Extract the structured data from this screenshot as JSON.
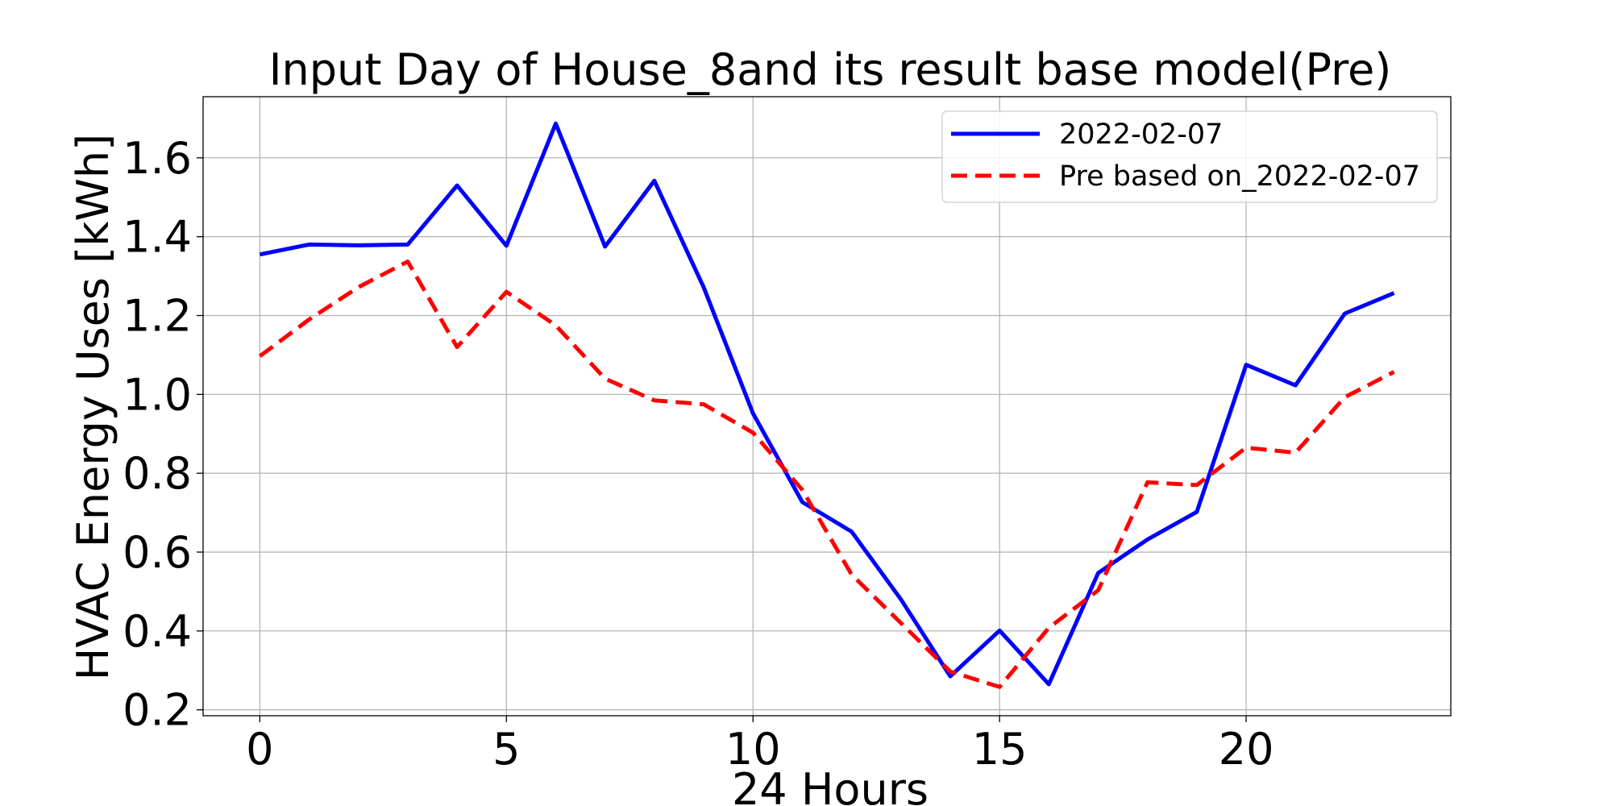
{
  "chart_data": {
    "type": "line",
    "title": "Input Day of House_8and its result base model(Pre)",
    "xlabel": "24 Hours",
    "ylabel": "HVAC Energy Uses [kWh]",
    "xlim": [
      -1.15,
      24.15
    ],
    "ylim": [
      0.185,
      1.755
    ],
    "xticks": [
      0,
      5,
      10,
      15,
      20
    ],
    "yticks": [
      0.2,
      0.4,
      0.6,
      0.8,
      1.0,
      1.2,
      1.4,
      1.6
    ],
    "grid": true,
    "legend_position": "top-right",
    "x": [
      0,
      1,
      2,
      3,
      4,
      5,
      6,
      7,
      8,
      9,
      10,
      11,
      12,
      13,
      14,
      15,
      16,
      17,
      18,
      19,
      20,
      21,
      22,
      23
    ],
    "series": [
      {
        "name": "2022-02-07",
        "color": "#0000ff",
        "style": "solid",
        "values": [
          1.355,
          1.38,
          1.378,
          1.38,
          1.53,
          1.377,
          1.687,
          1.375,
          1.542,
          1.272,
          0.952,
          0.727,
          0.652,
          0.48,
          0.285,
          0.401,
          0.265,
          0.547,
          0.632,
          0.702,
          1.075,
          1.023,
          1.205,
          1.257
        ]
      },
      {
        "name": "Pre based on_2022-02-07",
        "color": "#ff0000",
        "style": "dashed",
        "values": [
          1.097,
          1.19,
          1.272,
          1.337,
          1.12,
          1.26,
          1.175,
          1.04,
          0.985,
          0.975,
          0.903,
          0.758,
          0.543,
          0.42,
          0.297,
          0.258,
          0.408,
          0.503,
          0.777,
          0.77,
          0.865,
          0.852,
          0.993,
          1.057
        ]
      }
    ]
  }
}
